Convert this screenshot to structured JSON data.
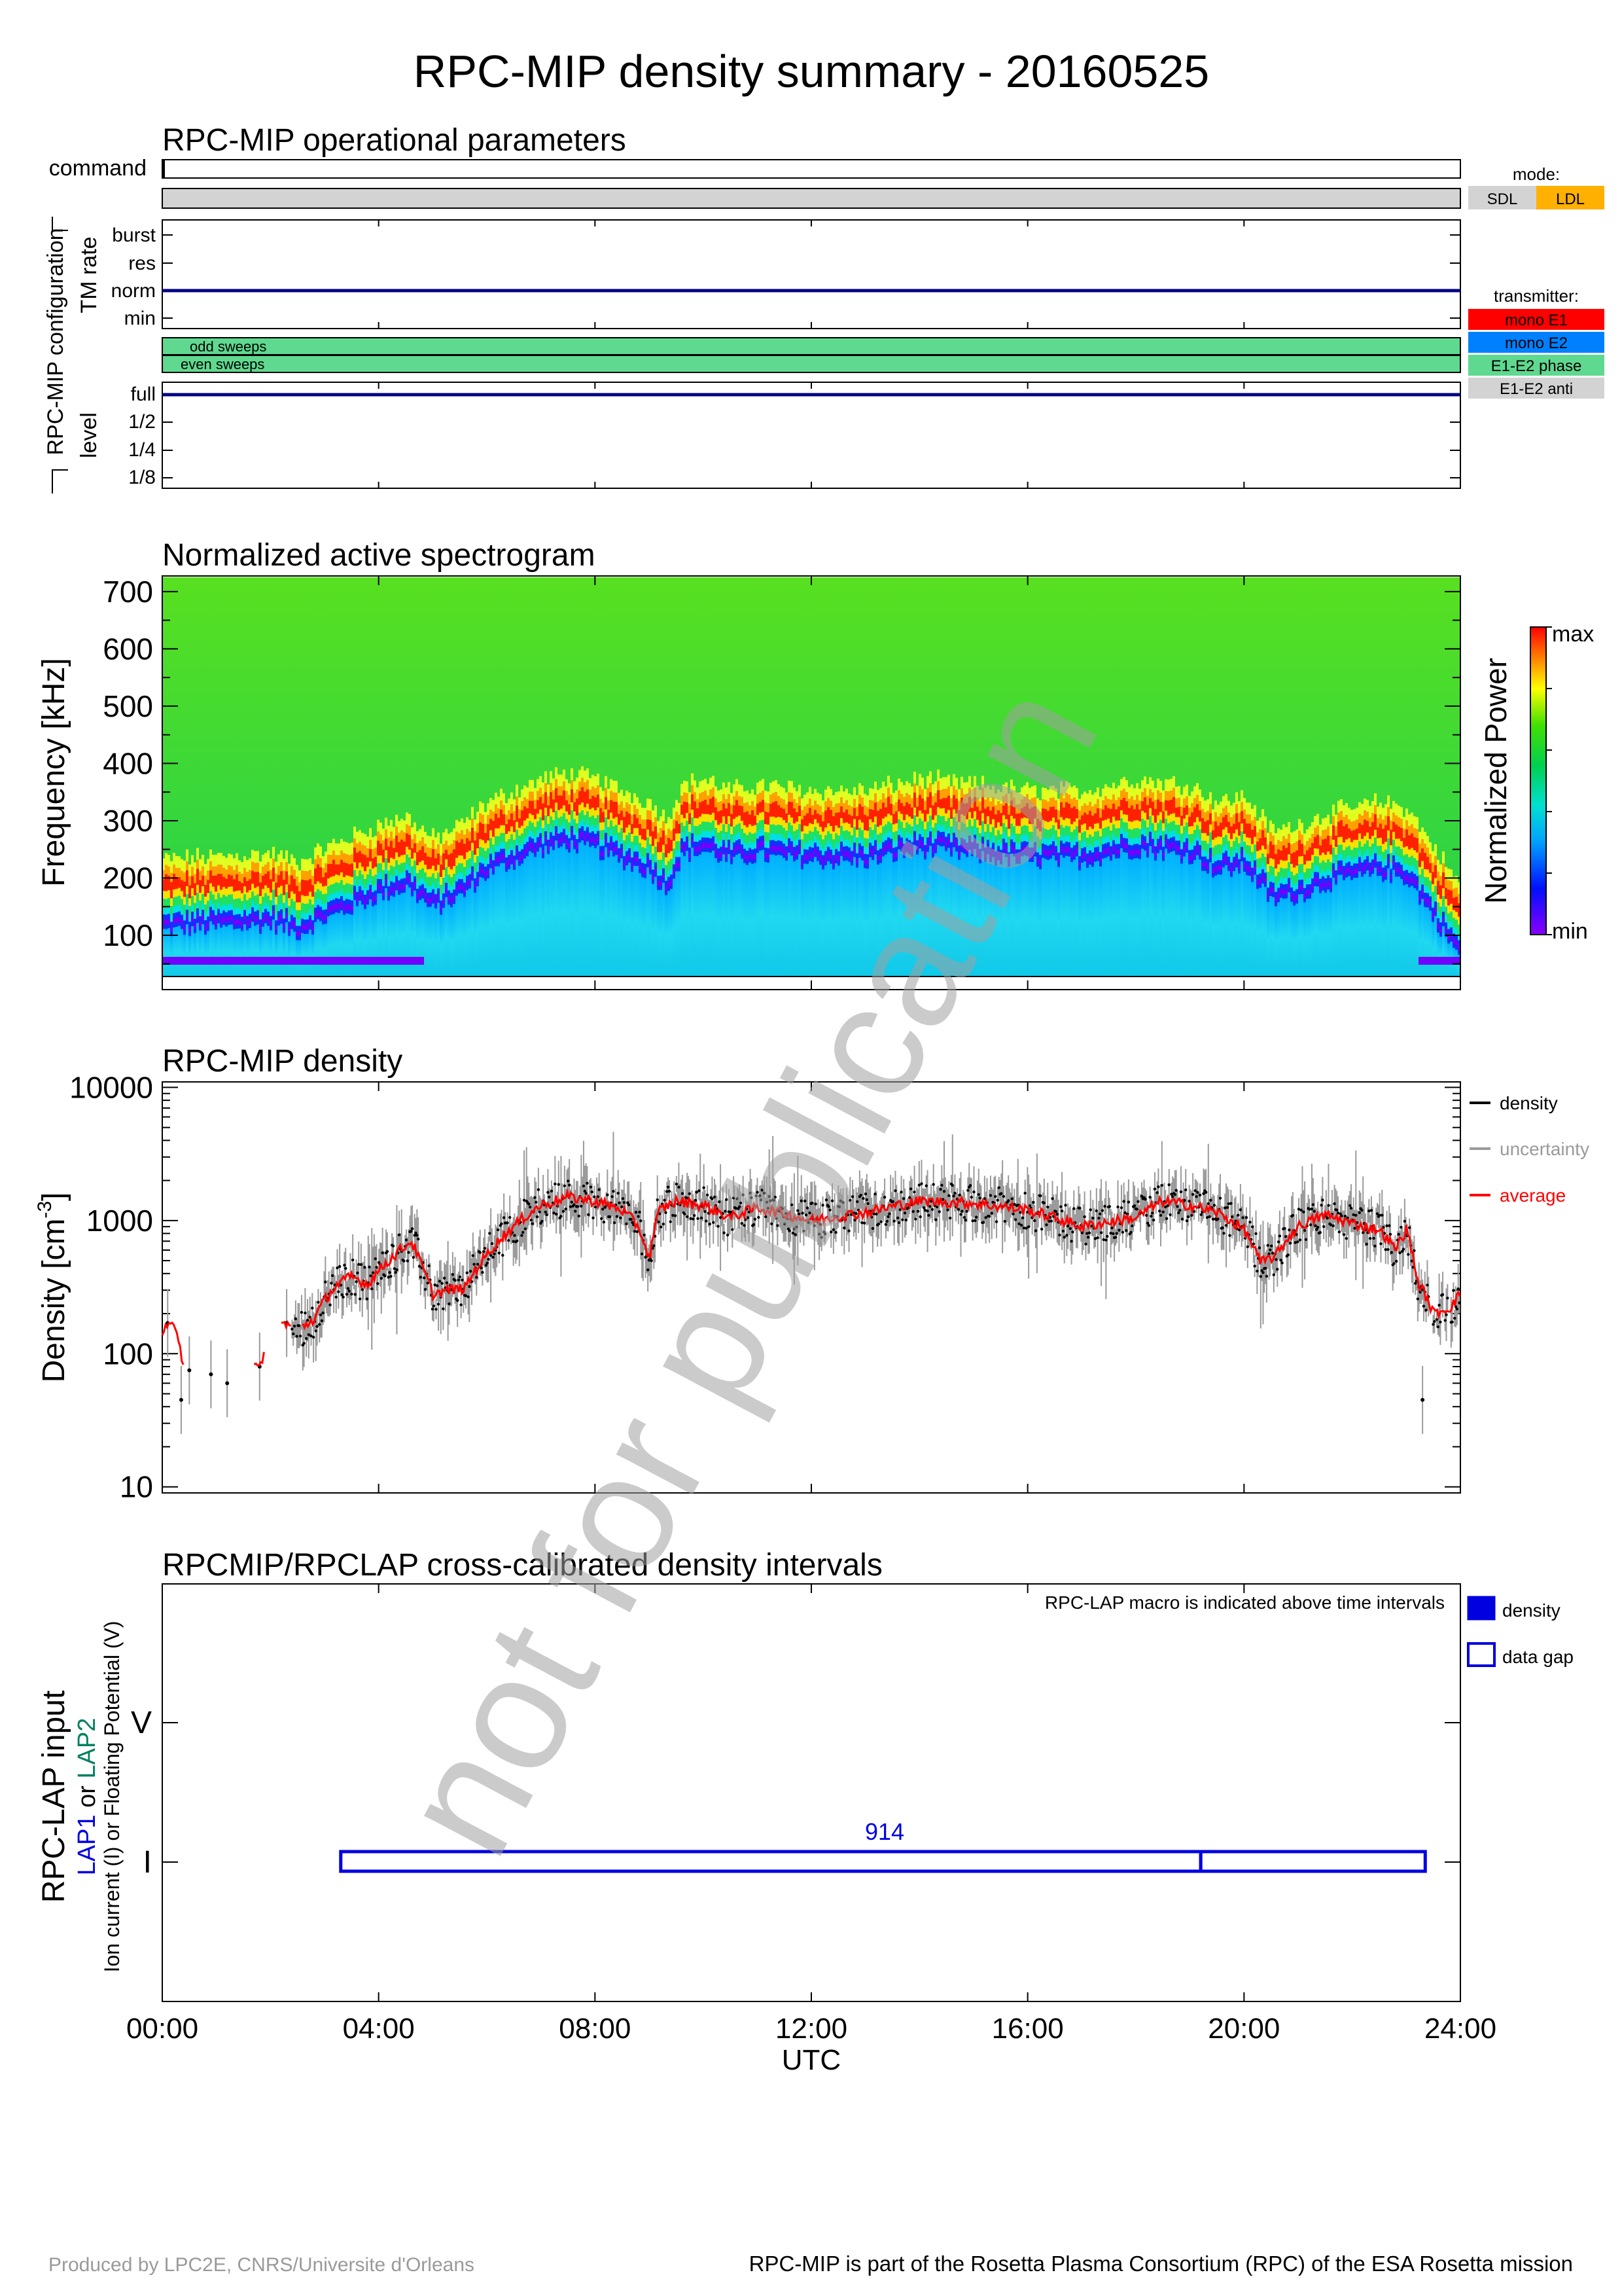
{
  "title": "RPC-MIP density summary - 20160525",
  "ops": {
    "title": "RPC-MIP operational parameters",
    "command_label": "command",
    "config_label": "RPC-MIP configuration",
    "tm_label": "TM rate",
    "tm_levels": [
      "burst",
      "res",
      "norm",
      "min"
    ],
    "tm_value": "norm",
    "sweeps": [
      "odd sweeps",
      "even sweeps"
    ],
    "level_label": "level",
    "levels": [
      "full",
      "1/2",
      "1/4",
      "1/8"
    ],
    "level_value": "full",
    "mode_title": "mode:",
    "modes": [
      {
        "label": "SDL",
        "color": "#d3d3d3"
      },
      {
        "label": "LDL",
        "color": "#ffb000"
      }
    ],
    "transmitter_title": "transmitter:",
    "transmitters": [
      {
        "label": "mono E1",
        "color": "#ff0000"
      },
      {
        "label": "mono E2",
        "color": "#0080ff"
      },
      {
        "label": "E1-E2 phase",
        "color": "#5fd98f"
      },
      {
        "label": "E1-E2 anti",
        "color": "#d3d3d3"
      }
    ]
  },
  "spectrogram": {
    "title": "Normalized active spectrogram",
    "ylabel": "Frequency [kHz]",
    "yticks": [
      100,
      200,
      300,
      400,
      500,
      600,
      700
    ],
    "ylim": [
      28,
      725
    ],
    "colorbar_label": "Normalized Power",
    "colorbar_max": "max",
    "colorbar_min": "min",
    "ridge_hours": [
      0,
      1,
      2,
      2.5,
      3,
      3.5,
      4,
      4.5,
      5,
      5.5,
      6,
      6.5,
      7,
      7.5,
      8,
      8.5,
      9,
      9.3,
      9.6,
      10,
      10.5,
      11,
      12,
      13,
      14,
      15,
      16,
      17,
      18,
      19,
      19.5,
      20,
      20.5,
      21,
      21.5,
      22,
      22.5,
      23,
      23.5,
      24
    ],
    "ridge_khz": [
      180,
      185,
      190,
      175,
      200,
      220,
      240,
      255,
      215,
      240,
      280,
      300,
      320,
      330,
      320,
      300,
      280,
      250,
      310,
      320,
      300,
      310,
      300,
      300,
      320,
      310,
      300,
      300,
      320,
      310,
      280,
      290,
      230,
      240,
      260,
      270,
      280,
      270,
      200,
      130
    ]
  },
  "density": {
    "title": "RPC-MIP density",
    "ylabel": "Density [cm",
    "ylabel_sup": "-3",
    "ylabel_end": "]",
    "yticks": [
      10,
      100,
      1000,
      10000
    ],
    "ylim": [
      9,
      11000
    ],
    "legend": [
      {
        "label": "density",
        "color": "#000000"
      },
      {
        "label": "uncertainty",
        "color": "#9a9a9a"
      },
      {
        "label": "average",
        "color": "#ff0000"
      }
    ],
    "avg_hours": [
      0,
      0.15,
      0.3,
      0.4,
      1.8,
      2.0,
      2.2,
      2.5,
      2.8,
      3.0,
      3.2,
      3.5,
      3.8,
      4.0,
      4.3,
      4.6,
      4.8,
      5.0,
      5.3,
      5.6,
      6.0,
      6.5,
      7.0,
      7.5,
      8.0,
      8.5,
      8.8,
      9.0,
      9.2,
      9.5,
      10.0,
      10.5,
      11.0,
      12.0,
      13.0,
      14.0,
      15.0,
      16.0,
      17.0,
      18.0,
      18.5,
      19.0,
      19.5,
      20.0,
      20.3,
      20.6,
      21.0,
      21.5,
      22.0,
      22.5,
      22.8,
      23.0,
      23.2,
      23.5,
      23.8,
      24.0
    ],
    "avg_values": [
      150,
      180,
      120,
      80,
      80,
      130,
      170,
      150,
      180,
      250,
      320,
      380,
      330,
      420,
      550,
      700,
      450,
      280,
      300,
      310,
      550,
      900,
      1300,
      1500,
      1400,
      1200,
      900,
      500,
      1200,
      1400,
      1300,
      1050,
      1250,
      1000,
      1150,
      1400,
      1350,
      1200,
      900,
      1050,
      1400,
      1300,
      1150,
      850,
      480,
      550,
      900,
      1100,
      950,
      850,
      600,
      850,
      350,
      200,
      220,
      280
    ],
    "outlier_hours": [
      0.1,
      0.35,
      0.5,
      0.9,
      1.2,
      1.8,
      2.3,
      23.3
    ],
    "outlier_values": [
      170,
      45,
      75,
      70,
      60,
      80,
      170,
      45
    ]
  },
  "crosscal": {
    "title": "RPCMIP/RPCLAP cross-calibrated density intervals",
    "note": "RPC-LAP macro is indicated above time intervals",
    "ylabel_main": "RPC-LAP input",
    "ylabel_lap1": "LAP1",
    "ylabel_or1": " or ",
    "ylabel_lap2": "LAP2",
    "ylabel_sub": "Ion current (I) or Floating Potential (V)",
    "yticks": [
      "V",
      "I"
    ],
    "macro": "914",
    "intervals": [
      {
        "kind": "data gap",
        "start": 3.3,
        "end": 19.2
      },
      {
        "kind": "data gap",
        "start": 19.2,
        "end": 23.35
      }
    ],
    "legend": [
      {
        "label": "density",
        "filled": true
      },
      {
        "label": "data gap",
        "filled": false
      }
    ]
  },
  "xaxis": {
    "ticks": [
      "00:00",
      "04:00",
      "08:00",
      "12:00",
      "16:00",
      "20:00",
      "24:00"
    ],
    "label": "UTC",
    "range_hours": [
      0,
      24
    ]
  },
  "watermark": "not for publication",
  "footer_left": "Produced by LPC2E, CNRS/Universite d'Orleans",
  "footer_right": "RPC-MIP is part of the Rosetta Plasma Consortium (RPC) of the ESA Rosetta mission"
}
